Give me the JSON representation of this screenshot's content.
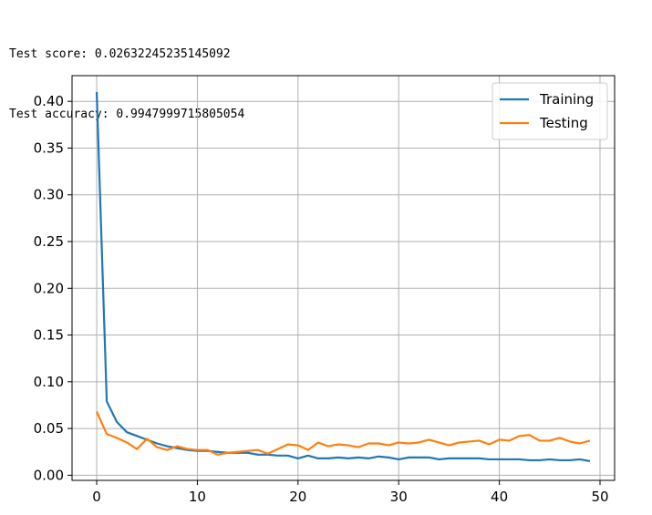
{
  "output": {
    "lines": [
      "Test score: 0.02632245235145092",
      "Test accuracy: 0.9947999715805054"
    ]
  },
  "chart_data": {
    "type": "line",
    "title": "",
    "xlabel": "",
    "ylabel": "",
    "xlim": [
      -2.45,
      51.45
    ],
    "ylim": [
      -0.0055,
      0.4275
    ],
    "xticks": [
      0,
      10,
      20,
      30,
      40,
      50
    ],
    "yticks": [
      0.0,
      0.05,
      0.1,
      0.15,
      0.2,
      0.25,
      0.3,
      0.35,
      0.4
    ],
    "xtick_labels": [
      "0",
      "10",
      "20",
      "30",
      "40",
      "50"
    ],
    "ytick_labels": [
      "0.00",
      "0.05",
      "0.10",
      "0.15",
      "0.20",
      "0.25",
      "0.30",
      "0.35",
      "0.40"
    ],
    "grid": true,
    "legend_position": "top-right",
    "x": [
      0,
      1,
      2,
      3,
      4,
      5,
      6,
      7,
      8,
      9,
      10,
      11,
      12,
      13,
      14,
      15,
      16,
      17,
      18,
      19,
      20,
      21,
      22,
      23,
      24,
      25,
      26,
      27,
      28,
      29,
      30,
      31,
      32,
      33,
      34,
      35,
      36,
      37,
      38,
      39,
      40,
      41,
      42,
      43,
      44,
      45,
      46,
      47,
      48,
      49
    ],
    "series": [
      {
        "name": "Training",
        "color": "#1f77b4",
        "values": [
          0.41,
          0.079,
          0.057,
          0.046,
          0.042,
          0.038,
          0.034,
          0.031,
          0.029,
          0.027,
          0.026,
          0.026,
          0.025,
          0.024,
          0.024,
          0.024,
          0.022,
          0.022,
          0.021,
          0.021,
          0.018,
          0.021,
          0.018,
          0.018,
          0.019,
          0.018,
          0.019,
          0.018,
          0.02,
          0.019,
          0.017,
          0.019,
          0.019,
          0.019,
          0.017,
          0.018,
          0.018,
          0.018,
          0.018,
          0.017,
          0.017,
          0.017,
          0.017,
          0.016,
          0.016,
          0.017,
          0.016,
          0.016,
          0.017,
          0.015
        ]
      },
      {
        "name": "Testing",
        "color": "#ff7f0e",
        "values": [
          0.068,
          0.044,
          0.04,
          0.035,
          0.028,
          0.039,
          0.03,
          0.027,
          0.031,
          0.028,
          0.027,
          0.027,
          0.022,
          0.024,
          0.025,
          0.026,
          0.027,
          0.023,
          0.028,
          0.033,
          0.032,
          0.027,
          0.035,
          0.031,
          0.033,
          0.032,
          0.03,
          0.034,
          0.034,
          0.032,
          0.035,
          0.034,
          0.035,
          0.038,
          0.035,
          0.032,
          0.035,
          0.036,
          0.037,
          0.033,
          0.038,
          0.037,
          0.042,
          0.043,
          0.037,
          0.037,
          0.04,
          0.036,
          0.034,
          0.037
        ]
      }
    ]
  }
}
